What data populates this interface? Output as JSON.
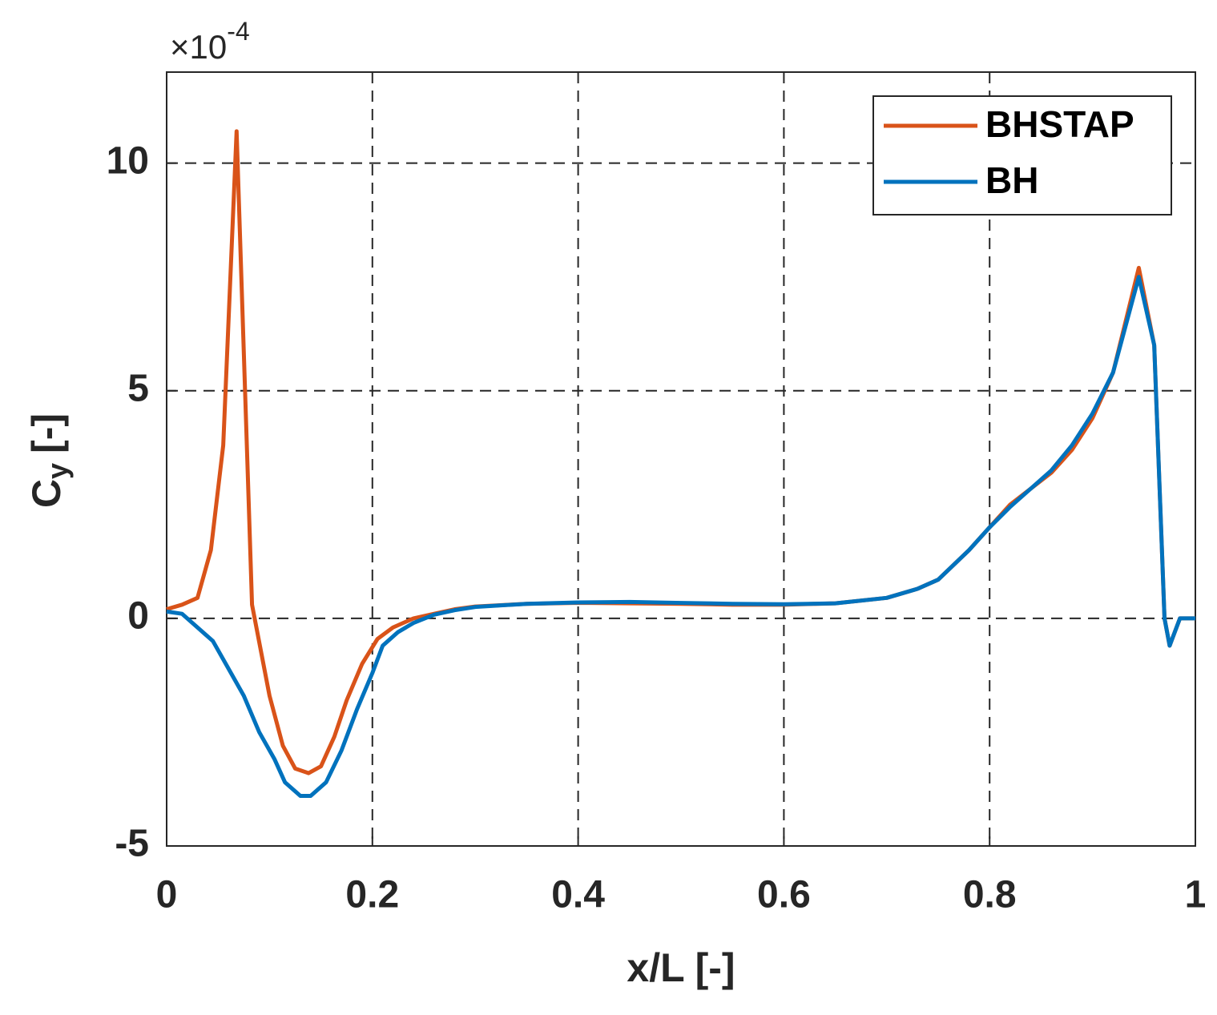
{
  "chart_data": {
    "type": "line",
    "x_label": "x/L [-]",
    "y_label": {
      "base": "C",
      "sub": "y",
      "unit": "[-]"
    },
    "y_multiplier": {
      "base": "×10",
      "exponent": "-4"
    },
    "xlim": [
      0,
      1
    ],
    "xticks": [
      0,
      0.2,
      0.4,
      0.6,
      0.8,
      1
    ],
    "ylim": [
      -5,
      12
    ],
    "yticks": [
      -5,
      0,
      5,
      10
    ],
    "grid": true,
    "legend": "upper right",
    "series": [
      {
        "name": "BHSTAP",
        "color": "#d95319",
        "x": [
          0,
          0.015,
          0.03,
          0.043,
          0.055,
          0.068,
          0.083,
          0.1,
          0.113,
          0.125,
          0.138,
          0.15,
          0.163,
          0.175,
          0.19,
          0.205,
          0.22,
          0.24,
          0.26,
          0.28,
          0.3,
          0.35,
          0.4,
          0.45,
          0.5,
          0.55,
          0.6,
          0.65,
          0.7,
          0.73,
          0.75,
          0.78,
          0.8,
          0.82,
          0.84,
          0.86,
          0.88,
          0.9,
          0.92,
          0.945,
          0.96,
          0.97,
          0.975,
          0.985,
          1
        ],
        "values": [
          0.2,
          0.3,
          0.45,
          1.5,
          3.8,
          10.7,
          0.3,
          -1.7,
          -2.8,
          -3.3,
          -3.4,
          -3.25,
          -2.6,
          -1.8,
          -1.0,
          -0.45,
          -0.2,
          0.0,
          0.1,
          0.2,
          0.26,
          0.32,
          0.34,
          0.33,
          0.32,
          0.3,
          0.3,
          0.33,
          0.45,
          0.65,
          0.85,
          1.5,
          2.0,
          2.5,
          2.85,
          3.2,
          3.7,
          4.4,
          5.4,
          7.7,
          6.0,
          0.0,
          -0.6,
          0.0,
          0.0
        ]
      },
      {
        "name": "BH",
        "color": "#0072bd",
        "x": [
          0,
          0.015,
          0.03,
          0.045,
          0.06,
          0.075,
          0.09,
          0.105,
          0.115,
          0.13,
          0.14,
          0.155,
          0.17,
          0.185,
          0.2,
          0.21,
          0.225,
          0.24,
          0.26,
          0.28,
          0.3,
          0.35,
          0.4,
          0.45,
          0.5,
          0.55,
          0.6,
          0.65,
          0.7,
          0.73,
          0.75,
          0.78,
          0.8,
          0.82,
          0.84,
          0.86,
          0.88,
          0.9,
          0.92,
          0.945,
          0.96,
          0.97,
          0.975,
          0.985,
          1
        ],
        "values": [
          0.15,
          0.1,
          -0.2,
          -0.5,
          -1.1,
          -1.7,
          -2.5,
          -3.1,
          -3.6,
          -3.9,
          -3.9,
          -3.6,
          -2.9,
          -2.0,
          -1.2,
          -0.6,
          -0.3,
          -0.1,
          0.08,
          0.18,
          0.25,
          0.32,
          0.35,
          0.36,
          0.34,
          0.32,
          0.31,
          0.33,
          0.45,
          0.65,
          0.85,
          1.5,
          2.0,
          2.45,
          2.85,
          3.25,
          3.8,
          4.5,
          5.4,
          7.5,
          6.0,
          0.0,
          -0.6,
          0.0,
          0.0
        ]
      }
    ]
  }
}
